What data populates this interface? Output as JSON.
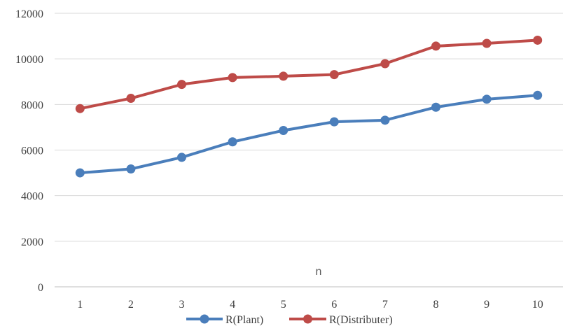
{
  "chart_data": {
    "type": "line",
    "categories": [
      "1",
      "2",
      "3",
      "4",
      "5",
      "6",
      "7",
      "8",
      "9",
      "10"
    ],
    "series": [
      {
        "name": "R(Plant)",
        "color": "#4a7ebb",
        "values": [
          5000,
          5170,
          5680,
          6360,
          6860,
          7240,
          7310,
          7880,
          8230,
          8400
        ]
      },
      {
        "name": "R(Distributer)",
        "color": "#be4b48",
        "values": [
          7820,
          8270,
          8880,
          9180,
          9240,
          9310,
          9790,
          10560,
          10680,
          10820
        ]
      }
    ],
    "title": "",
    "xlabel": "n",
    "ylabel": "",
    "ylim": [
      0,
      12000
    ],
    "yticks": [
      0,
      2000,
      4000,
      6000,
      8000,
      10000,
      12000
    ],
    "grid": true,
    "legend_position": "bottom"
  }
}
